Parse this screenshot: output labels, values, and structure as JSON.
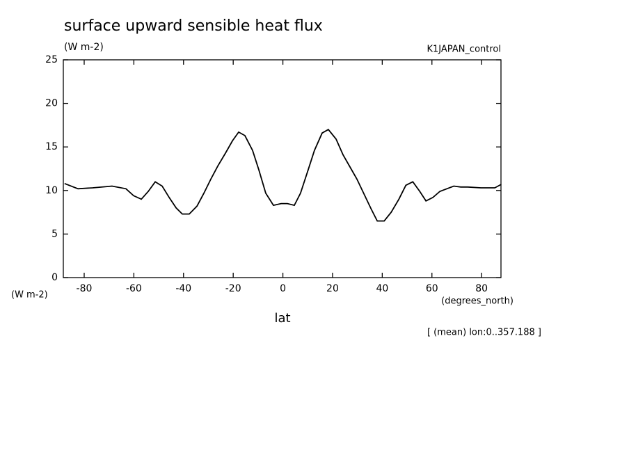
{
  "chart_data": {
    "type": "line",
    "title": "surface upward sensible heat flux",
    "subtitle": "(W m-2)",
    "annotation": "K1JAPAN_control",
    "y_units": "(W m-2)",
    "x_units": "(degrees_north)",
    "x_label": "lat",
    "footnote": "[ (mean) lon:0..357.188 ]",
    "x": [
      -87.9,
      -82.5,
      -76.6,
      -68.8,
      -63.2,
      -60.1,
      -57.0,
      -54.2,
      -51.4,
      -48.6,
      -45.8,
      -43.0,
      -40.5,
      -37.7,
      -34.6,
      -31.8,
      -29.0,
      -26.2,
      -23.1,
      -20.3,
      -17.8,
      -15.3,
      -12.2,
      -9.7,
      -6.9,
      -3.8,
      -0.7,
      1.8,
      4.6,
      7.1,
      10.2,
      12.7,
      15.8,
      18.3,
      21.4,
      24.2,
      29.8,
      35.5,
      38.0,
      40.8,
      43.6,
      46.7,
      49.5,
      52.3,
      55.1,
      57.6,
      60.4,
      63.2,
      68.8,
      71.6,
      74.4,
      79.7,
      85.3,
      87.9
    ],
    "series": [
      {
        "color": "#000000",
        "values": [
          10.8,
          10.2,
          10.3,
          10.5,
          10.2,
          9.4,
          9.0,
          9.9,
          11.0,
          10.5,
          9.2,
          8.0,
          7.3,
          7.3,
          8.2,
          9.7,
          11.3,
          12.8,
          14.3,
          15.7,
          16.7,
          16.3,
          14.6,
          12.4,
          9.7,
          8.3,
          8.5,
          8.5,
          8.3,
          9.7,
          12.4,
          14.6,
          16.6,
          17.0,
          15.9,
          14.1,
          11.3,
          7.9,
          6.5,
          6.5,
          7.5,
          9.0,
          10.6,
          11.0,
          9.9,
          8.8,
          9.2,
          9.9,
          10.5,
          10.4,
          10.4,
          10.3,
          10.3,
          10.7
        ]
      }
    ],
    "xlim": [
      -88.4,
      87.8
    ],
    "xticks": [
      -80,
      -60,
      -40,
      -20,
      0,
      20,
      40,
      60,
      80
    ],
    "ylim": [
      0,
      25
    ],
    "yticks": [
      0,
      5,
      10,
      15,
      20,
      25
    ]
  }
}
